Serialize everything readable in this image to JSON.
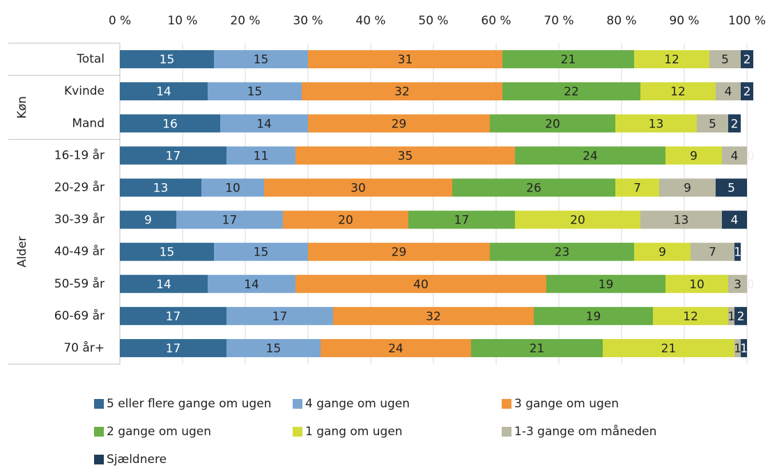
{
  "chart_data": {
    "type": "stacked-bar-horizontal",
    "categories": [
      "Total",
      "Kvinde",
      "Mand",
      "16-19 år",
      "20-29 år",
      "30-39 år",
      "40-49 år",
      "50-59 år",
      "60-69 år",
      "70 år+"
    ],
    "groups": [
      {
        "label": "Køn",
        "from": 1,
        "to": 2
      },
      {
        "label": "Alder",
        "from": 3,
        "to": 9
      }
    ],
    "series": [
      {
        "name": "5 eller flere gange om ugen",
        "color": "#336b94",
        "text_color": "#ffffff",
        "values": [
          15,
          14,
          16,
          17,
          13,
          9,
          15,
          14,
          17,
          17
        ]
      },
      {
        "name": "4 gange om ugen",
        "color": "#7ba6d2",
        "text_color": "#222222",
        "values": [
          15,
          15,
          14,
          11,
          10,
          17,
          15,
          14,
          17,
          15
        ]
      },
      {
        "name": "3 gange om ugen",
        "color": "#f0953a",
        "text_color": "#222222",
        "values": [
          31,
          32,
          29,
          35,
          30,
          20,
          29,
          40,
          32,
          24
        ]
      },
      {
        "name": "2 gange om ugen",
        "color": "#6aae47",
        "text_color": "#222222",
        "values": [
          21,
          22,
          20,
          24,
          26,
          17,
          23,
          19,
          19,
          21
        ]
      },
      {
        "name": "1 gang om ugen",
        "color": "#d4dc3c",
        "text_color": "#222222",
        "values": [
          12,
          12,
          13,
          9,
          7,
          20,
          9,
          10,
          12,
          21
        ]
      },
      {
        "name": "1-3 gange om måneden",
        "color": "#b9b9a4",
        "text_color": "#222222",
        "values": [
          5,
          4,
          5,
          4,
          9,
          13,
          7,
          3,
          1,
          1
        ]
      },
      {
        "name": "Sjældnere",
        "color": "#203d5a",
        "text_color": "#ffffff",
        "values": [
          2,
          2,
          2,
          0,
          5,
          4,
          1,
          0,
          2,
          1
        ]
      }
    ],
    "xlim": [
      0,
      100
    ],
    "xticks": [
      {
        "value": 0,
        "label": "0 %"
      },
      {
        "value": 10,
        "label": "10 %"
      },
      {
        "value": 20,
        "label": "20 %"
      },
      {
        "value": 30,
        "label": "30 %"
      },
      {
        "value": 40,
        "label": "40 %"
      },
      {
        "value": 50,
        "label": "50 %"
      },
      {
        "value": 60,
        "label": "60 %"
      },
      {
        "value": 70,
        "label": "70 %"
      },
      {
        "value": 80,
        "label": "80 %"
      },
      {
        "value": 90,
        "label": "90 %"
      },
      {
        "value": 100,
        "label": "100 %"
      }
    ],
    "grid": true,
    "legend": "bottom"
  }
}
